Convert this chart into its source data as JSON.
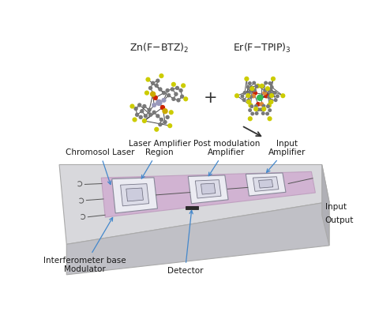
{
  "bg_color": "#ffffff",
  "mol1_label": "Zn(F–BTZ)₂",
  "mol2_label": "Er(F–TPIP)₃",
  "plus_symbol": "+",
  "annotation_color": "#4488cc",
  "labels": {
    "chromosol_laser": "Chromosol Laser",
    "laser_amp": "Laser Amplifier\nRegion",
    "post_mod": "Post modulation\nAmplifier",
    "input_amp": "Input\nAmplifier",
    "interf": "Interferometer base\nModulator",
    "detector": "Detector",
    "input": "Input",
    "output": "Output"
  },
  "chip_top": "#d8d8dc",
  "chip_front": "#c0c0c6",
  "chip_right": "#b0b0b6",
  "chip_edge": "#aaaaaa",
  "purple_region": "#d0aad0",
  "font_size_labels": 7.5,
  "font_size_mol": 9,
  "C": "#787878",
  "F": "#cccc00",
  "O": "#cc2200",
  "N": "#9999bb",
  "S": "#ccaa00",
  "Zn": "#9999bb",
  "Er": "#33bb55",
  "orange": "#dd8833"
}
